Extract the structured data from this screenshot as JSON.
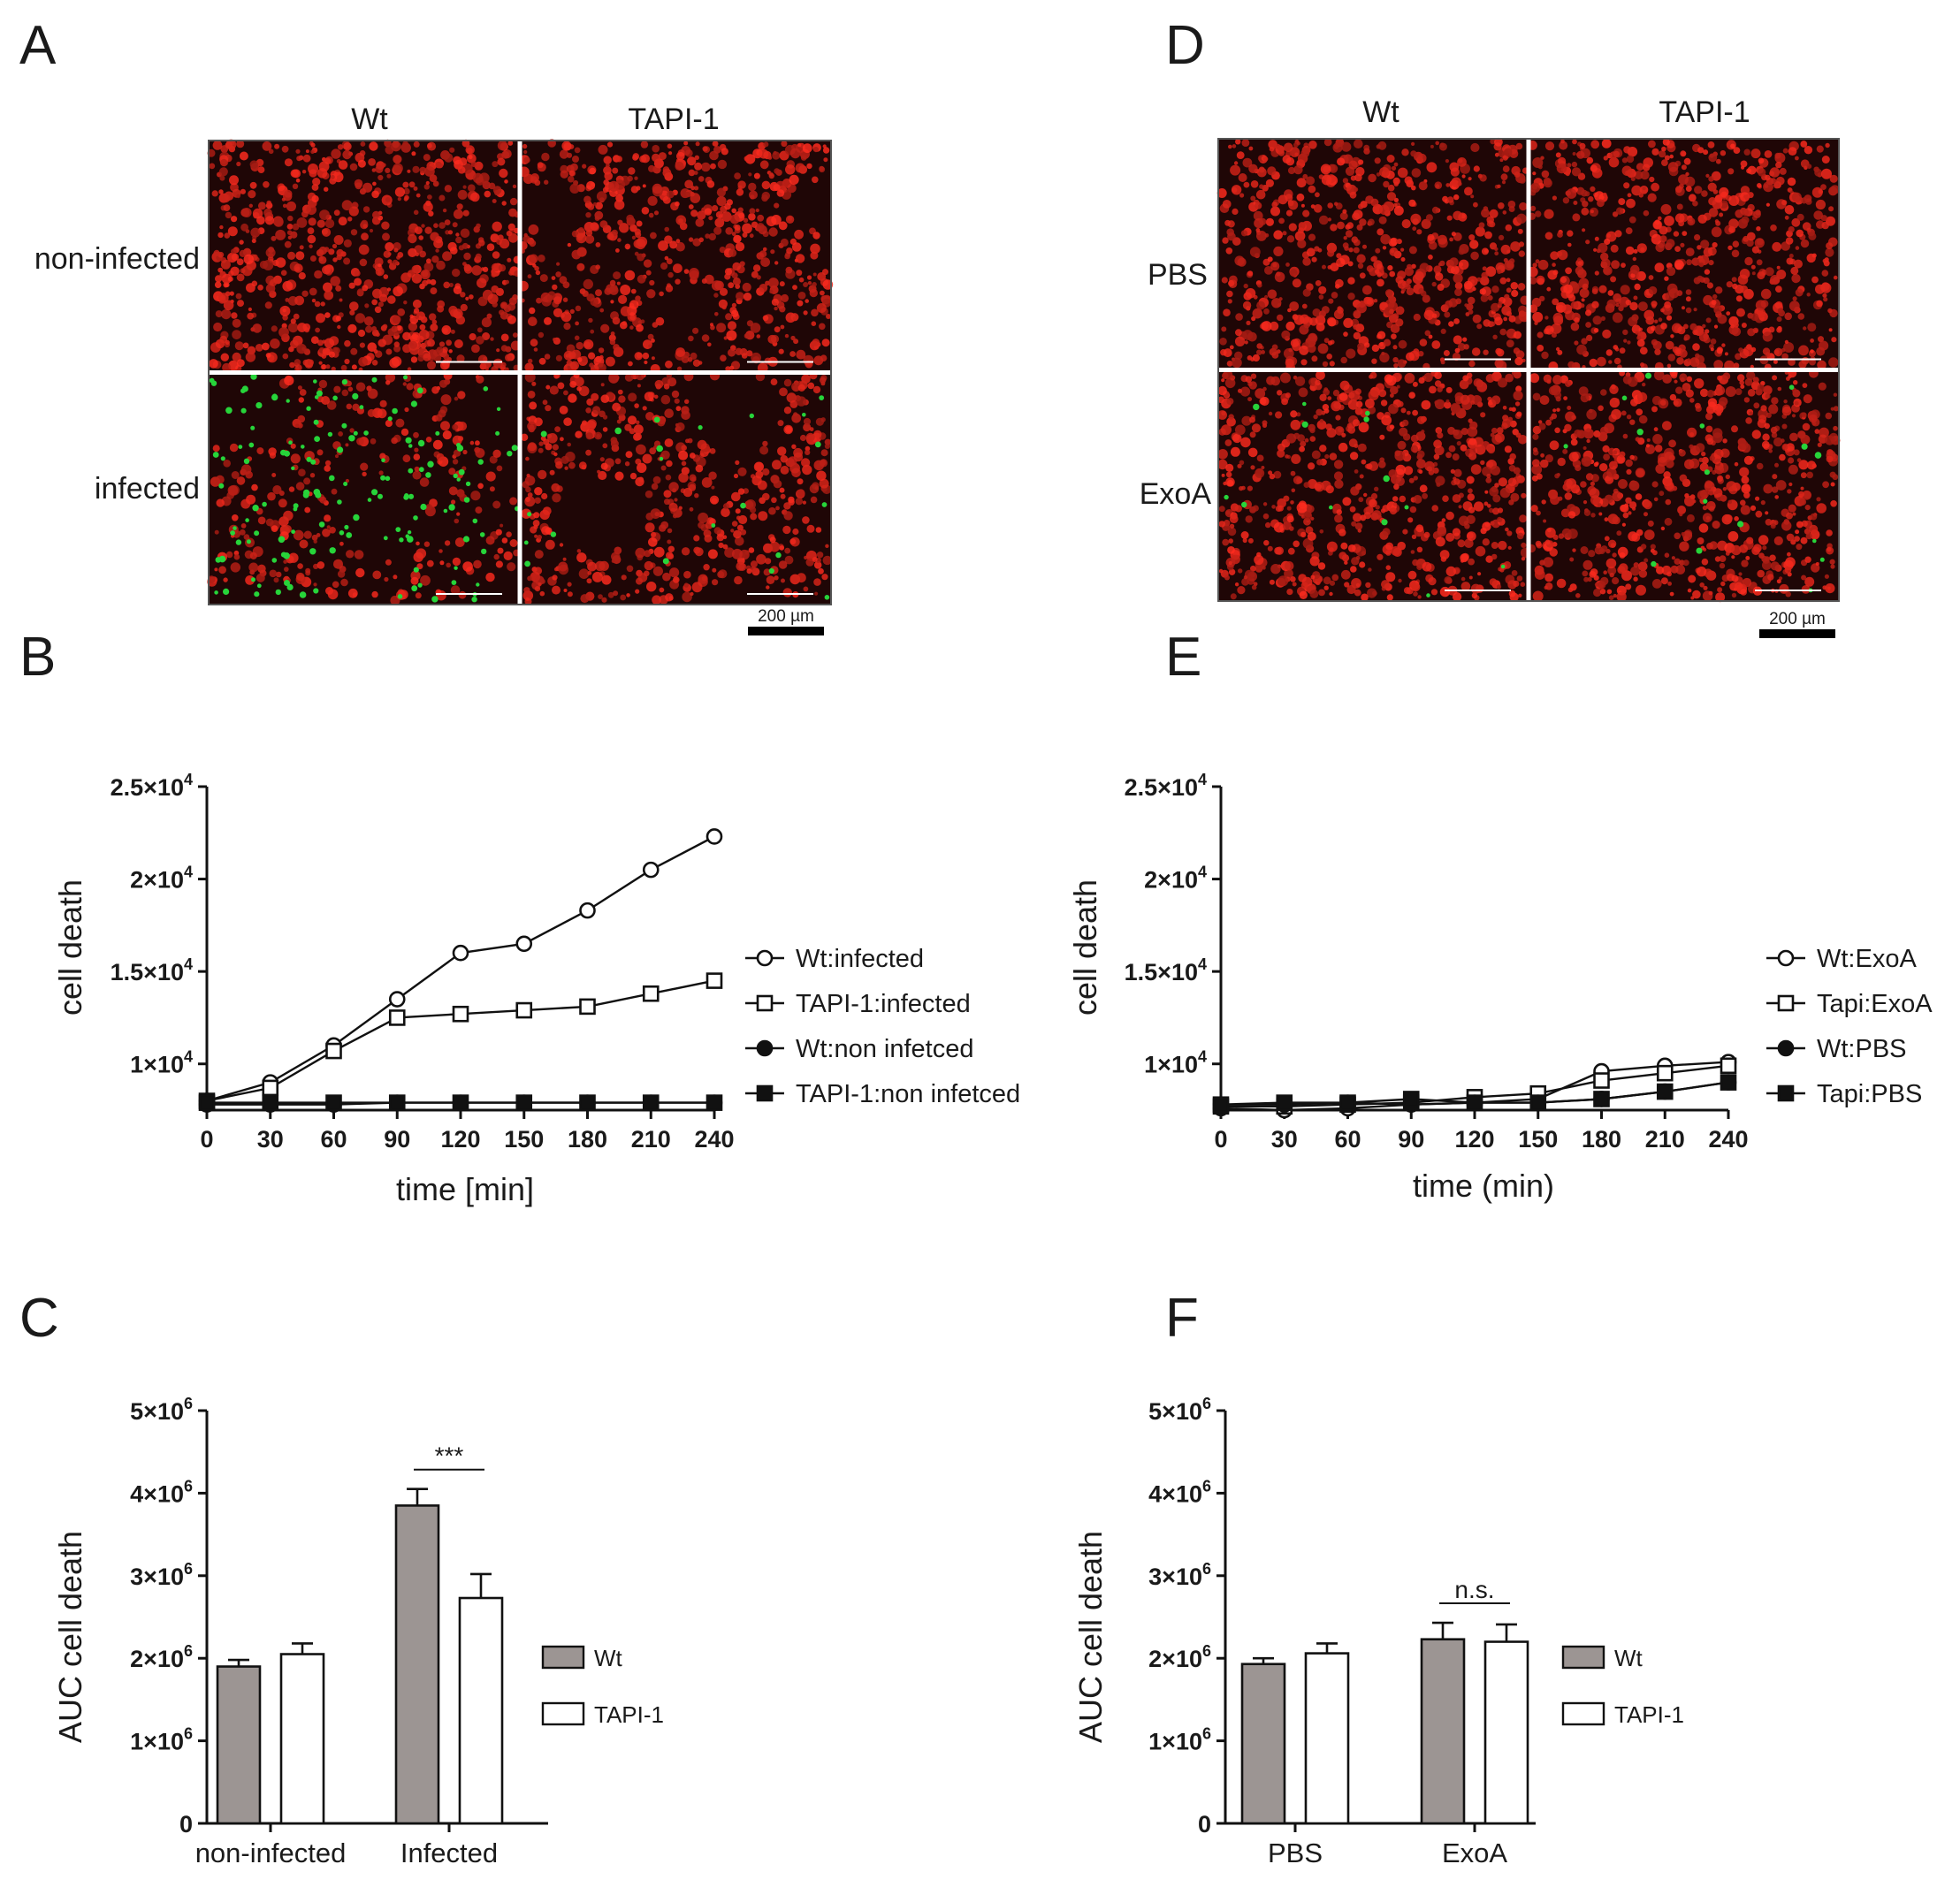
{
  "panel_labels": {
    "a": "A",
    "b": "B",
    "c": "C",
    "d": "D",
    "e": "E",
    "f": "F"
  },
  "colors": {
    "wt_bar": "#9c9593",
    "tapi_bar": "#ffffff",
    "micro_bg": "#1f0606",
    "red_cells": "#e0291f",
    "green_cells": "#27d43a"
  },
  "micrographs": [
    {
      "col_headers": [
        "Wt",
        "TAPI-1"
      ],
      "row_labels": [
        "non-infected",
        "infected"
      ],
      "scale_bar": "200 µm",
      "tiles": [
        {
          "density": 0.85,
          "green": 0,
          "dark": 0
        },
        {
          "density": 0.8,
          "green": 0,
          "dark": 0.15
        },
        {
          "density": 0.45,
          "green": 0.55,
          "dark": 0.35
        },
        {
          "density": 0.75,
          "green": 0.08,
          "dark": 0.35
        }
      ]
    },
    {
      "col_headers": [
        "Wt",
        "TAPI-1"
      ],
      "row_labels": [
        "PBS",
        "ExoA"
      ],
      "scale_bar": "200 µm",
      "tiles": [
        {
          "density": 0.8,
          "green": 0,
          "dark": 0
        },
        {
          "density": 0.8,
          "green": 0,
          "dark": 0
        },
        {
          "density": 0.8,
          "green": 0.05,
          "dark": 0
        },
        {
          "density": 0.8,
          "green": 0.06,
          "dark": 0
        }
      ]
    }
  ],
  "chart_data": [
    {
      "type": "line",
      "panel": "B",
      "xlabel": "time [min]",
      "ylabel": "cell death",
      "x": [
        0,
        30,
        60,
        90,
        120,
        150,
        180,
        210,
        240
      ],
      "xticks": [
        "0",
        "30",
        "60",
        "90",
        "120",
        "150",
        "180",
        "210",
        "240"
      ],
      "ylim": [
        7500,
        25000
      ],
      "ytick_values": [
        10000,
        15000,
        20000,
        25000
      ],
      "yticks": [
        {
          "base": "1×10",
          "exp": "4"
        },
        {
          "base": "1.5×10",
          "exp": "4"
        },
        {
          "base": "2×10",
          "exp": "4"
        },
        {
          "base": "2.5×10",
          "exp": "4"
        }
      ],
      "series": [
        {
          "name": "Wt:infected",
          "marker": "circle-open",
          "values": [
            8000,
            9000,
            11000,
            13500,
            16000,
            16500,
            18300,
            20500,
            22300
          ]
        },
        {
          "name": "TAPI-1:infected",
          "marker": "square-open",
          "values": [
            8000,
            8700,
            10700,
            12500,
            12700,
            12900,
            13100,
            13800,
            14500
          ]
        },
        {
          "name": "Wt:non infetced",
          "marker": "circle-filled",
          "values": [
            7800,
            7800,
            7800,
            7900,
            7900,
            7900,
            7900,
            7900,
            7900
          ]
        },
        {
          "name": "TAPI-1:non infetced",
          "marker": "square-filled",
          "values": [
            7900,
            7900,
            7900,
            7900,
            7900,
            7900,
            7900,
            7900,
            7900
          ]
        }
      ]
    },
    {
      "type": "line",
      "panel": "E",
      "xlabel": "time (min)",
      "ylabel": "cell death",
      "x": [
        0,
        30,
        60,
        90,
        120,
        150,
        180,
        210,
        240
      ],
      "xticks": [
        "0",
        "30",
        "60",
        "90",
        "120",
        "150",
        "180",
        "210",
        "240"
      ],
      "ylim": [
        7500,
        25000
      ],
      "ytick_values": [
        10000,
        15000,
        20000,
        25000
      ],
      "yticks": [
        {
          "base": "1×10",
          "exp": "4"
        },
        {
          "base": "1.5×10",
          "exp": "4"
        },
        {
          "base": "2×10",
          "exp": "4"
        },
        {
          "base": "2.5×10",
          "exp": "4"
        }
      ],
      "series": [
        {
          "name": "Wt:ExoA",
          "marker": "circle-open",
          "values": [
            7600,
            7500,
            7600,
            7800,
            7900,
            8100,
            9600,
            9900,
            10100
          ]
        },
        {
          "name": "Tapi:ExoA",
          "marker": "square-open",
          "values": [
            7700,
            7700,
            7800,
            7900,
            8200,
            8400,
            9100,
            9500,
            9900
          ]
        },
        {
          "name": "Wt:PBS",
          "marker": "circle-filled",
          "values": [
            7800,
            7800,
            7900,
            7800,
            7900,
            7900,
            8100,
            8500,
            9000
          ]
        },
        {
          "name": "Tapi:PBS",
          "marker": "square-filled",
          "values": [
            7800,
            7900,
            7900,
            8100,
            7900,
            7900,
            8100,
            8500,
            9000
          ]
        }
      ]
    },
    {
      "type": "bar",
      "panel": "C",
      "ylabel": "AUC cell death",
      "categories": [
        "non-infected",
        "Infected"
      ],
      "ylim": [
        0,
        5000000
      ],
      "ytick_values": [
        0,
        1000000,
        2000000,
        3000000,
        4000000,
        5000000
      ],
      "yticks": [
        {
          "base": "0",
          "exp": ""
        },
        {
          "base": "1×10",
          "exp": "6"
        },
        {
          "base": "2×10",
          "exp": "6"
        },
        {
          "base": "3×10",
          "exp": "6"
        },
        {
          "base": "4×10",
          "exp": "6"
        },
        {
          "base": "5×10",
          "exp": "6"
        }
      ],
      "series": [
        {
          "name": "Wt",
          "values": [
            1900000,
            3850000
          ],
          "errors": [
            80000,
            200000
          ]
        },
        {
          "name": "TAPI-1",
          "values": [
            2050000,
            2730000
          ],
          "errors": [
            130000,
            290000
          ]
        }
      ],
      "annotations": [
        {
          "category": 1,
          "text": "***"
        }
      ]
    },
    {
      "type": "bar",
      "panel": "F",
      "ylabel": "AUC cell death",
      "categories": [
        "PBS",
        "ExoA"
      ],
      "ylim": [
        0,
        5000000
      ],
      "ytick_values": [
        0,
        1000000,
        2000000,
        3000000,
        4000000,
        5000000
      ],
      "yticks": [
        {
          "base": "0",
          "exp": ""
        },
        {
          "base": "1×10",
          "exp": "6"
        },
        {
          "base": "2×10",
          "exp": "6"
        },
        {
          "base": "3×10",
          "exp": "6"
        },
        {
          "base": "4×10",
          "exp": "6"
        },
        {
          "base": "5×10",
          "exp": "6"
        }
      ],
      "series": [
        {
          "name": "Wt",
          "values": [
            1930000,
            2230000
          ],
          "errors": [
            70000,
            200000
          ]
        },
        {
          "name": "TAPI-1",
          "values": [
            2060000,
            2200000
          ],
          "errors": [
            120000,
            210000
          ]
        }
      ],
      "annotations": [
        {
          "category": 1,
          "text": "n.s."
        }
      ]
    }
  ]
}
